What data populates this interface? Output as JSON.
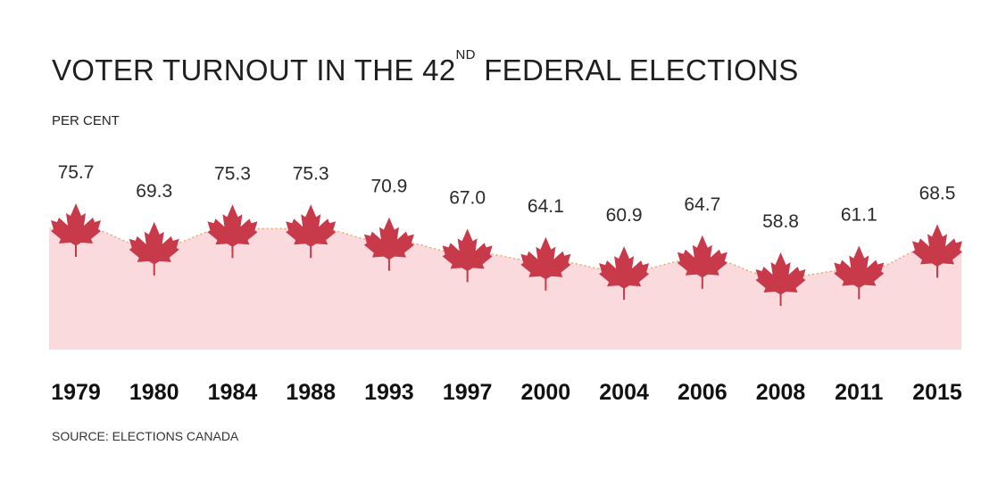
{
  "header": {
    "title_pre": "VOTER TURNOUT IN THE 42",
    "title_sup": "ND",
    "title_post": " FEDERAL ELECTIONS",
    "unit_label": "PER CENT"
  },
  "footer": {
    "source": "SOURCE: ELECTIONS CANADA"
  },
  "colors": {
    "leaf": "#c8394a",
    "area": "#fadadd",
    "connector": "#e0a86a"
  },
  "chart_data": {
    "type": "area",
    "title": "VOTER TURNOUT IN THE 42ND FEDERAL ELECTIONS",
    "ylabel": "PER CENT",
    "xlabel": "",
    "marker": "maple-leaf-icon",
    "ylim": [
      40,
      85
    ],
    "categories": [
      "1979",
      "1980",
      "1984",
      "1988",
      "1993",
      "1997",
      "2000",
      "2004",
      "2006",
      "2008",
      "2011",
      "2015"
    ],
    "values": [
      75.7,
      69.3,
      75.3,
      75.3,
      70.9,
      67.0,
      64.1,
      60.9,
      64.7,
      58.8,
      61.1,
      68.5
    ],
    "labels": [
      "75.7",
      "69.3",
      "75.3",
      "75.3",
      "70.9",
      "67.0",
      "64.1",
      "60.9",
      "64.7",
      "58.8",
      "61.1",
      "68.5"
    ]
  }
}
